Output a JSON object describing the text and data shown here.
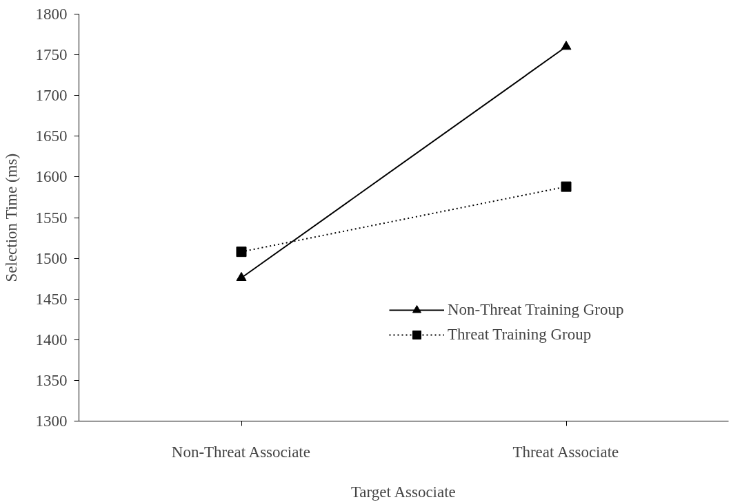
{
  "chart_data": {
    "type": "line",
    "xlabel": "Target Associate",
    "ylabel": "Selection Time (ms)",
    "categories": [
      "Non-Threat Associate",
      "Threat Associate"
    ],
    "series": [
      {
        "name": "Non-Threat Training Group",
        "color": "#000000",
        "values": [
          1476,
          1760
        ],
        "marker": "triangle",
        "line_style": "solid"
      },
      {
        "name": "Threat Training Group",
        "color": "#000000",
        "values": [
          1508,
          1588
        ],
        "marker": "square",
        "line_style": "dotted"
      }
    ],
    "ylim": [
      1300,
      1800
    ],
    "yticks": [
      1300,
      1350,
      1400,
      1450,
      1500,
      1550,
      1600,
      1650,
      1700,
      1750,
      1800
    ],
    "grid": false,
    "legend": "bottom right"
  }
}
